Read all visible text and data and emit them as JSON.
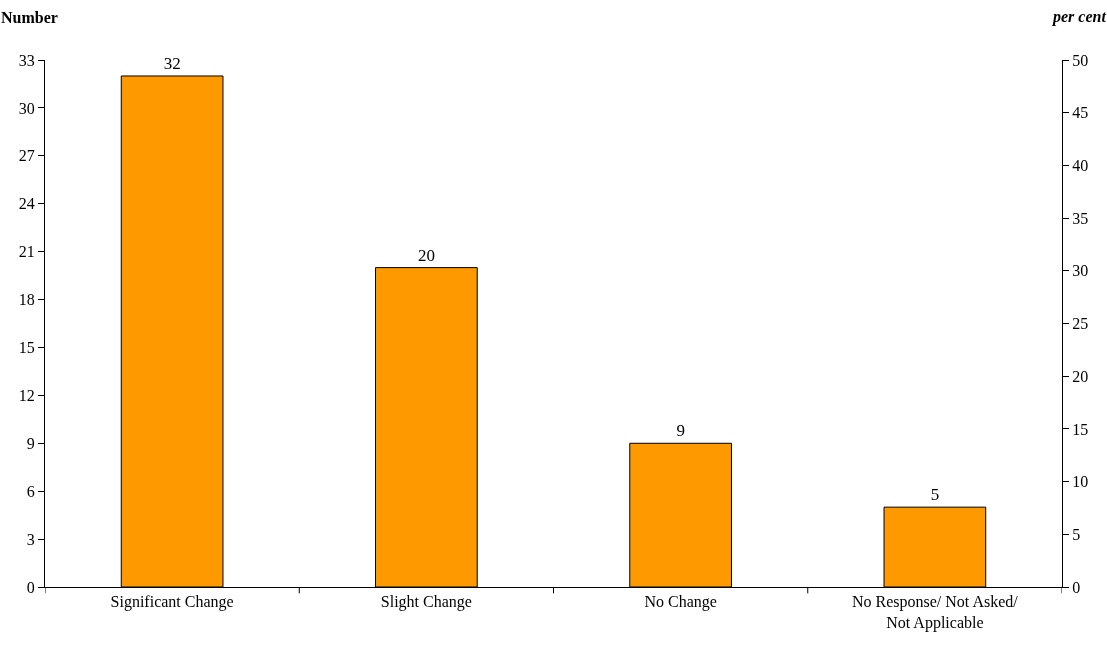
{
  "chart_data": {
    "type": "bar",
    "ylabel": "Number",
    "y2label": "per cent",
    "categories": [
      "Significant Change",
      "Slight Change",
      "No Change",
      "No Response/ Not Asked/ Not Applicable"
    ],
    "values": [
      32,
      20,
      9,
      5
    ],
    "color": "#ff9900",
    "data_labels": true,
    "ylim": [
      0,
      33
    ],
    "yticks": [
      0,
      3,
      6,
      9,
      12,
      15,
      18,
      21,
      24,
      27,
      30,
      33
    ],
    "y2lim": [
      0,
      50
    ],
    "y2ticks": [
      0,
      5,
      10,
      15,
      20,
      25,
      30,
      35,
      40,
      45,
      50
    ]
  }
}
